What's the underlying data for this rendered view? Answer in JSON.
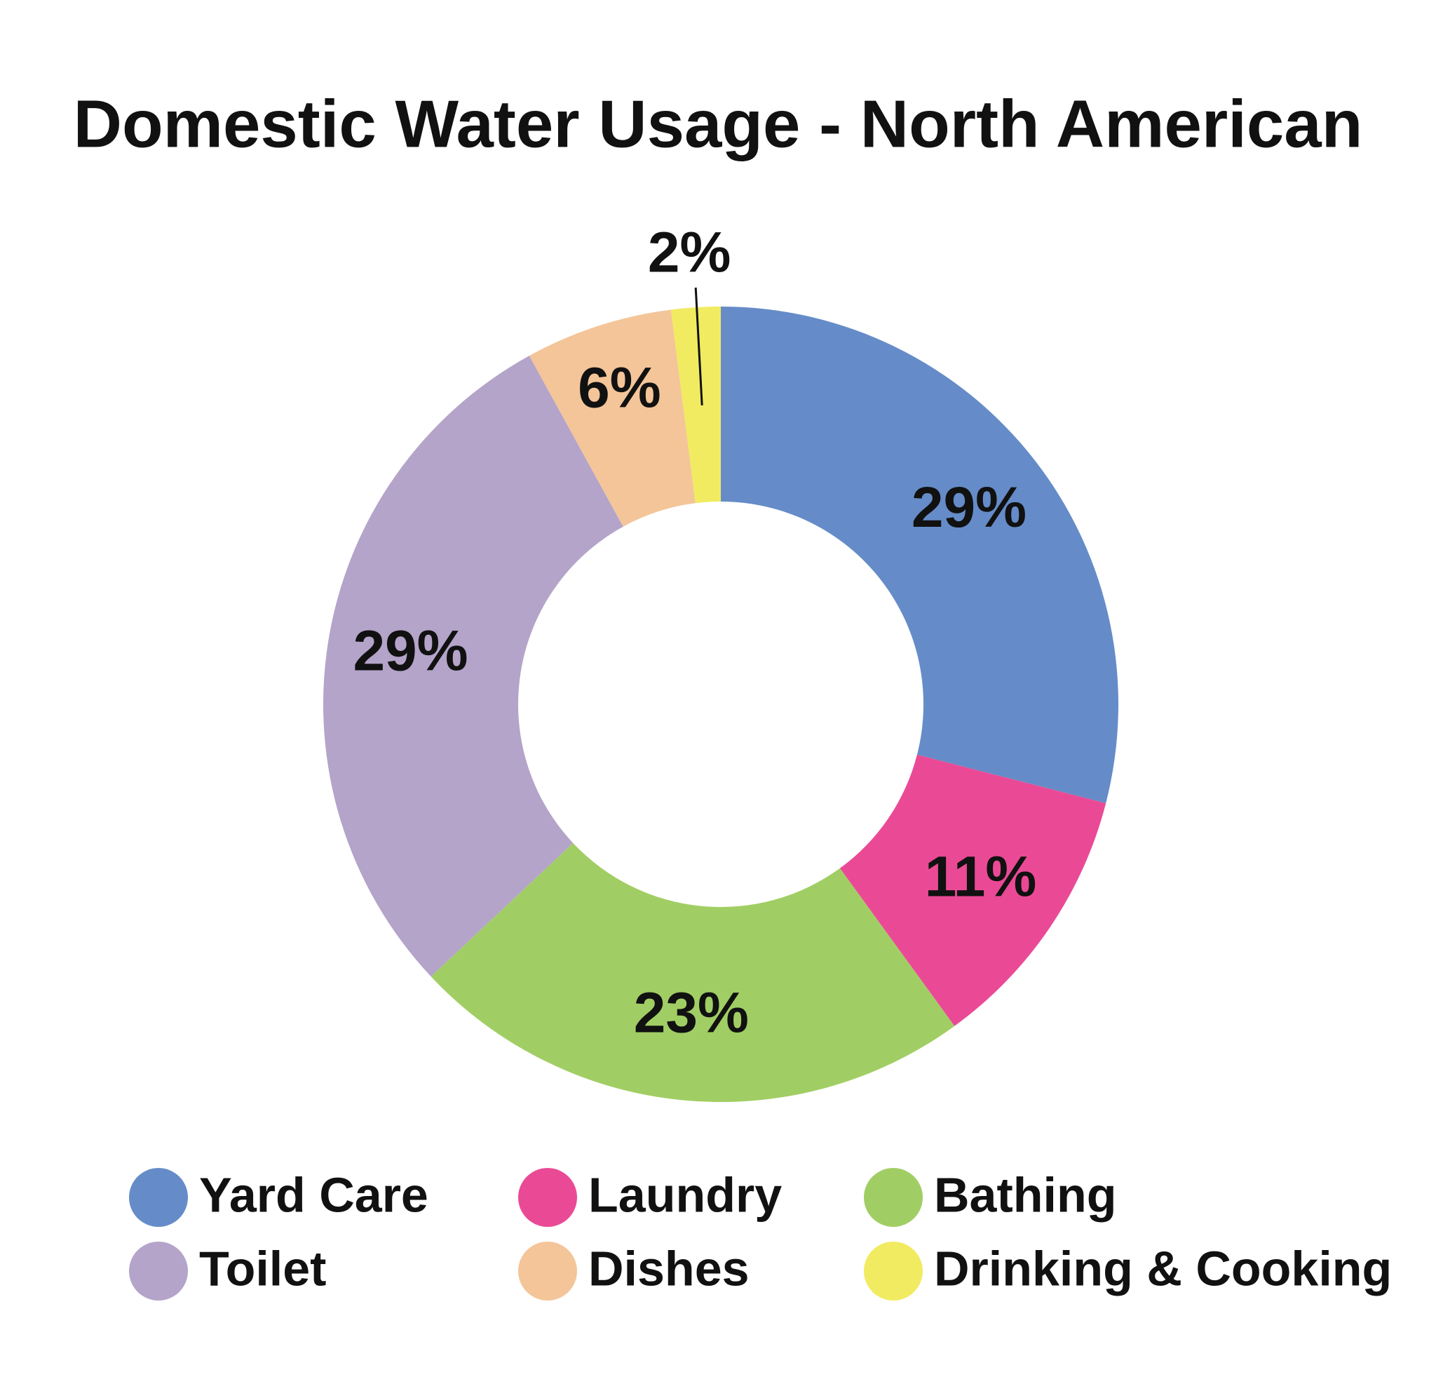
{
  "chart_data": {
    "type": "donut",
    "title": "Domestic Water Usage - North American",
    "categories": [
      "Yard Care",
      "Laundry",
      "Bathing",
      "Toilet",
      "Dishes",
      "Drinking & Cooking"
    ],
    "values": [
      29,
      11,
      23,
      29,
      6,
      2
    ],
    "value_labels": [
      "29%",
      "11%",
      "23%",
      "29%",
      "6%",
      "2%"
    ],
    "colors": [
      "#658cc8",
      "#ea4a95",
      "#a1ce64",
      "#b4a4c9",
      "#f3c599",
      "#f1eb61"
    ]
  }
}
